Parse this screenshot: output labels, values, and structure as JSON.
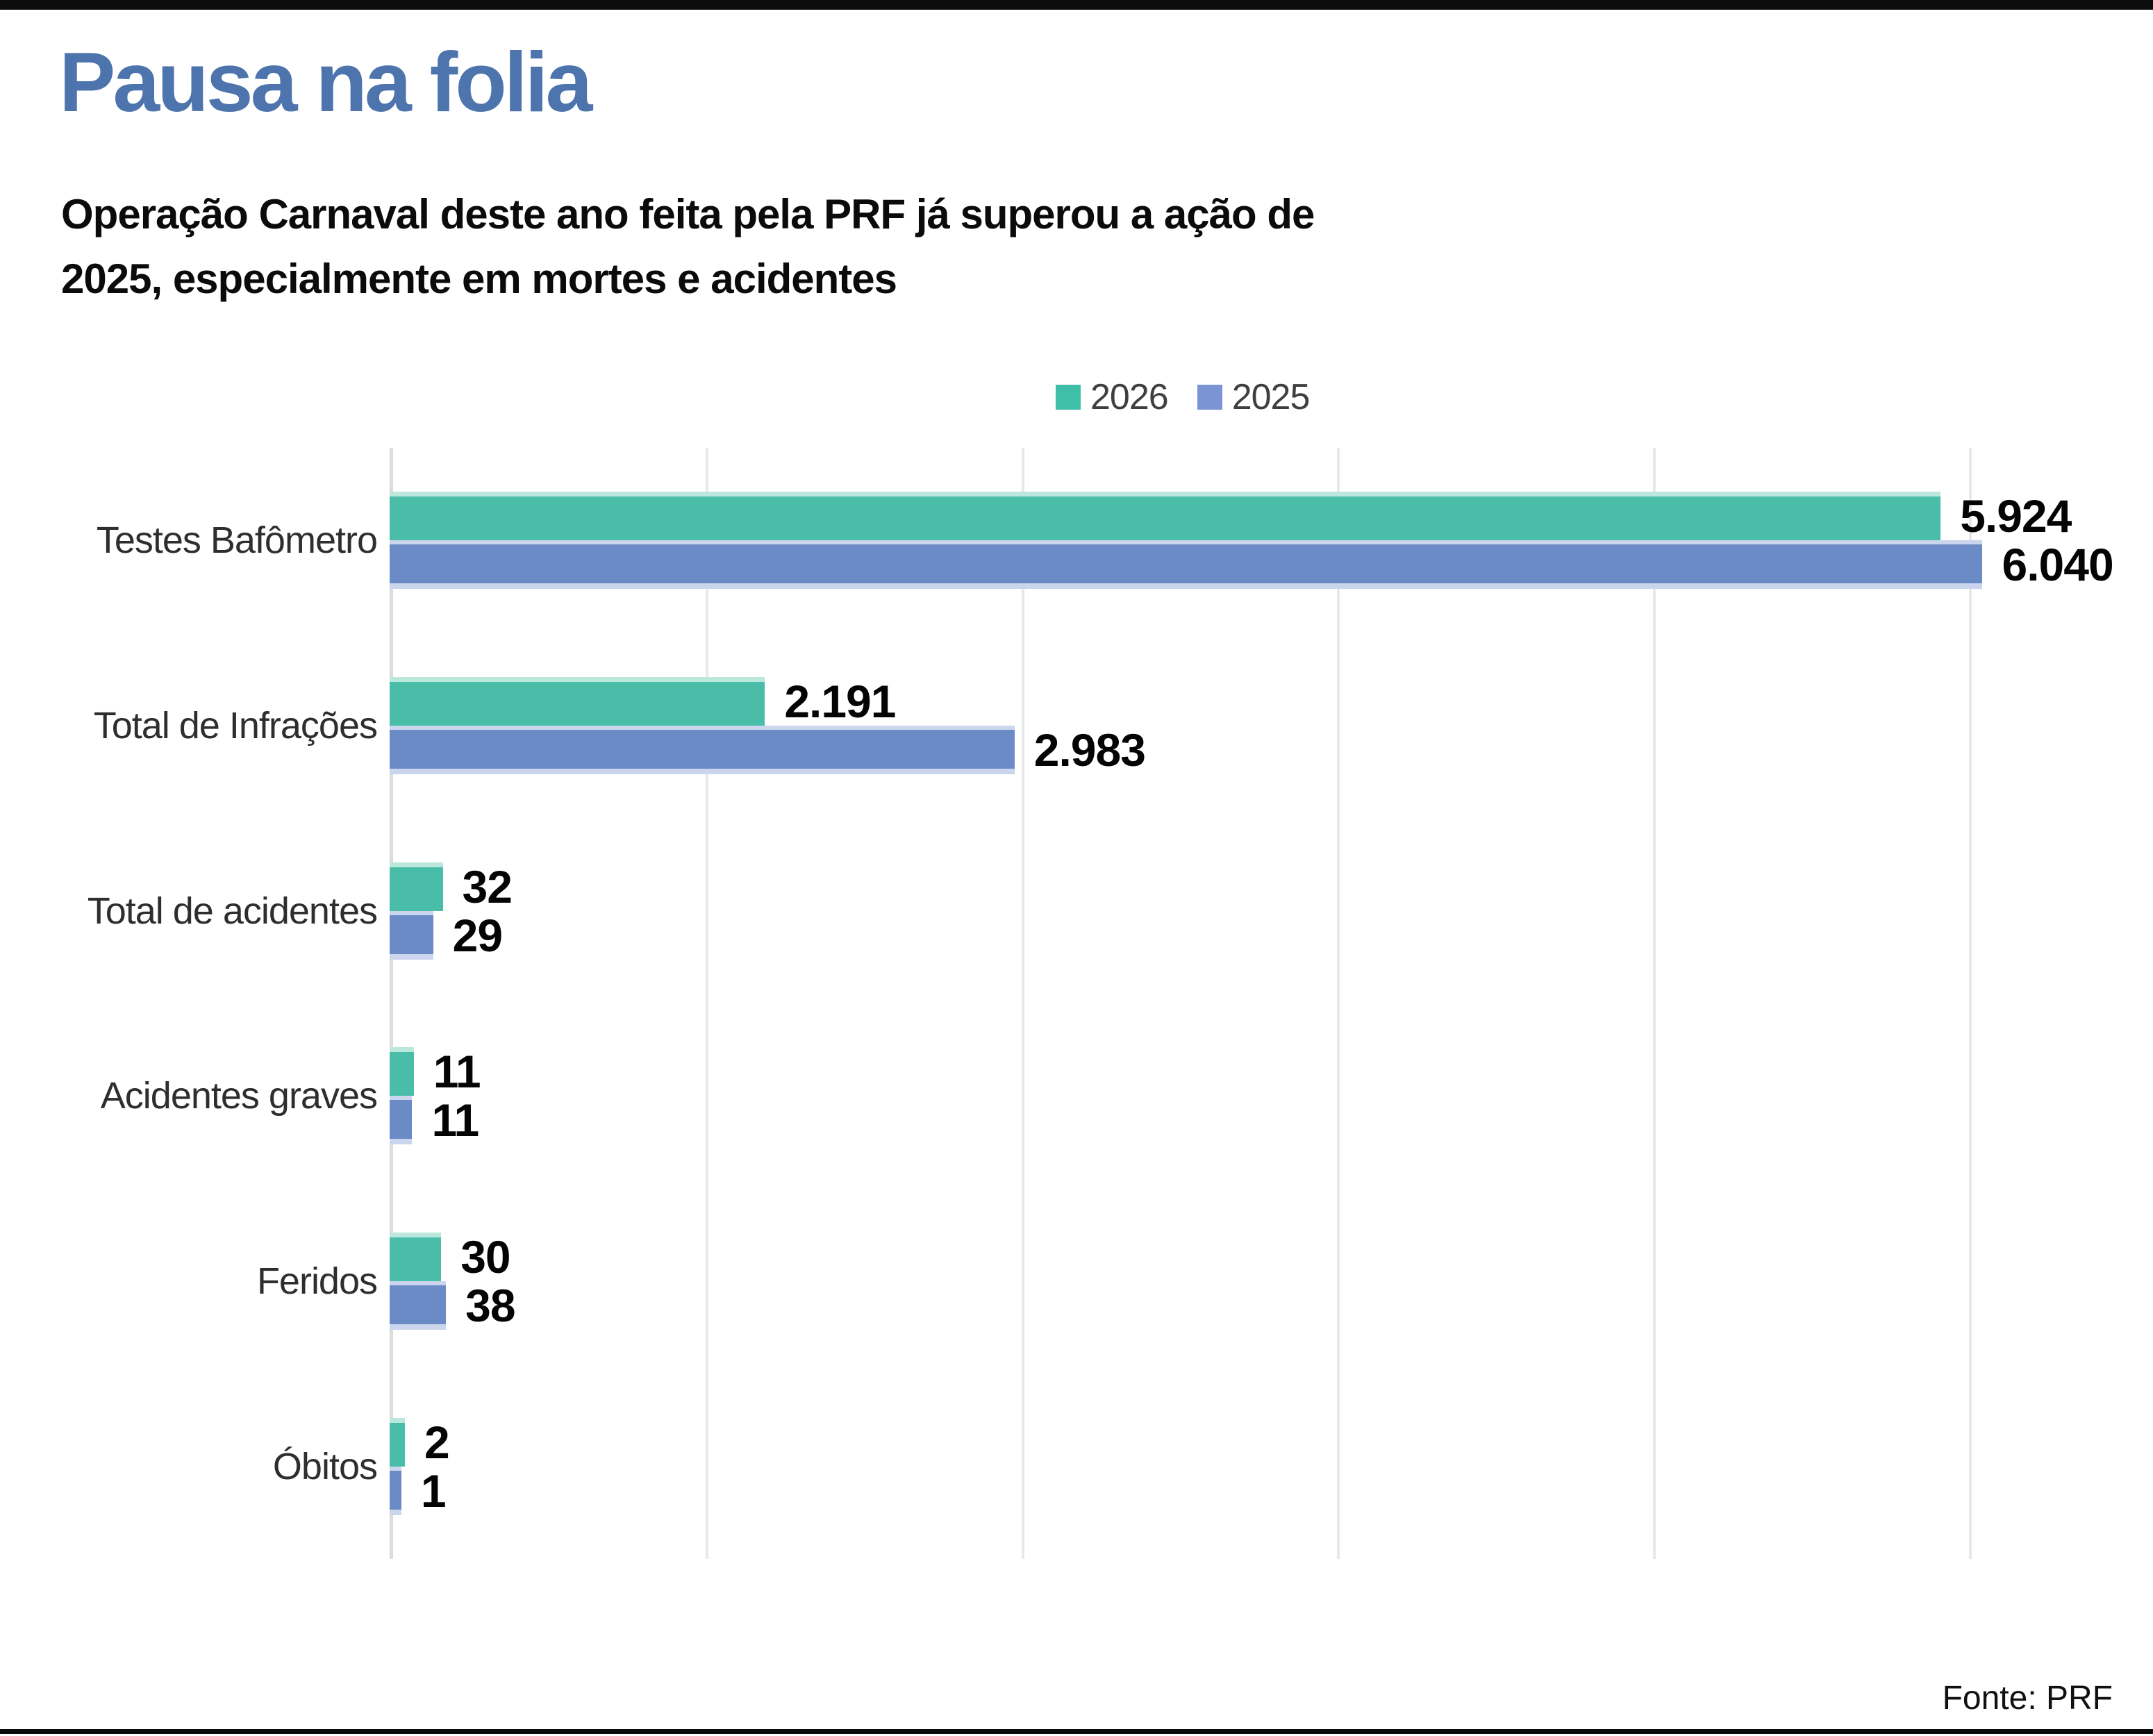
{
  "header": {
    "title": "Pausa na folia",
    "subtitle_lines": [
      "Operação Carnaval deste ano feita pela PRF já superou a ação de",
      "2025, especialmente em mortes e acidentes"
    ]
  },
  "legend": {
    "items": [
      {
        "label": "2026",
        "color": "#3fbfa7"
      },
      {
        "label": "2025",
        "color": "#7b94d3"
      }
    ]
  },
  "chart_data": {
    "type": "bar",
    "orientation": "horizontal",
    "title": "Pausa na folia",
    "categories": [
      "Testes Bafômetro",
      "Total de Infrações",
      "Total de acidentes",
      "Acidentes graves",
      "Feridos",
      "Óbitos"
    ],
    "series": [
      {
        "name": "2026",
        "color": "#4abda9",
        "values": [
          5924,
          2191,
          32,
          11,
          30,
          2
        ],
        "value_labels": [
          "5.924",
          "2.191",
          "32",
          "11",
          "30",
          "2"
        ],
        "display_pct": [
          96.3,
          23.3,
          3.3,
          1.5,
          3.2,
          0.95
        ]
      },
      {
        "name": "2025",
        "color": "#6b8bc6",
        "values": [
          6040,
          2983,
          29,
          11,
          38,
          1
        ],
        "value_labels": [
          "6.040",
          "2.983",
          "29",
          "11",
          "38",
          "1"
        ],
        "display_pct": [
          98.9,
          38.8,
          2.7,
          1.4,
          3.5,
          0.73
        ]
      }
    ],
    "xlabel": "",
    "ylabel": "",
    "axis_tick_labels_visible": false,
    "gridline_count": 6,
    "grid": true,
    "legend_position": "top"
  },
  "footer": {
    "source": "Fonte: PRF"
  }
}
